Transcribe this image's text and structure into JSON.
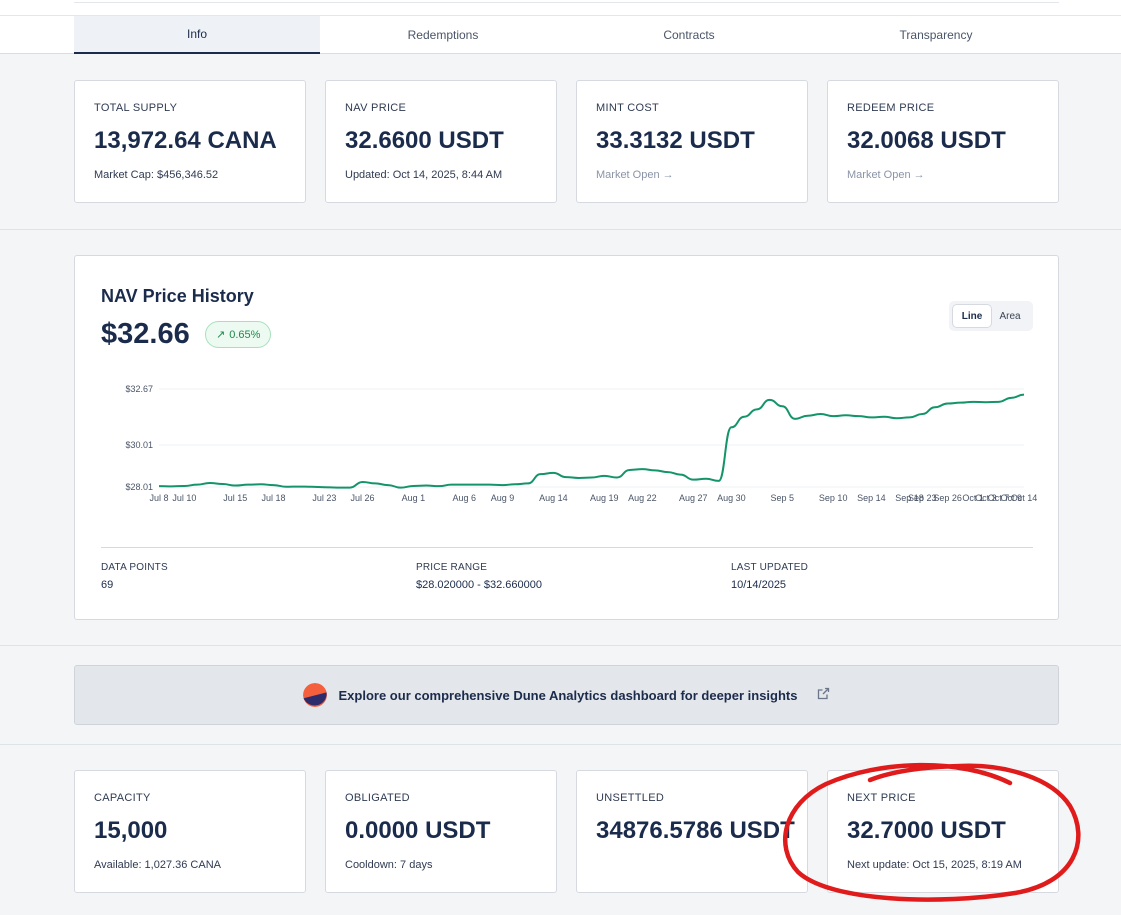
{
  "tabs": [
    {
      "label": "Info",
      "active": true
    },
    {
      "label": "Redemptions",
      "active": false
    },
    {
      "label": "Contracts",
      "active": false
    },
    {
      "label": "Transparency",
      "active": false
    }
  ],
  "stats_top": [
    {
      "label": "TOTAL SUPPLY",
      "value": "13,972.64 CANA",
      "sub": "Market Cap: $456,346.52"
    },
    {
      "label": "NAV PRICE",
      "value": "32.6600 USDT",
      "sub": "Updated: Oct 14, 2025, 8:44 AM"
    },
    {
      "label": "MINT COST",
      "value": "33.3132 USDT",
      "sub": "Market Open →"
    },
    {
      "label": "REDEEM PRICE",
      "value": "32.0068 USDT",
      "sub": "Market Open →"
    }
  ],
  "chart": {
    "title": "NAV Price History",
    "current_price": "$32.66",
    "change": "0.65%",
    "change_arrow": "↗",
    "toggle": {
      "line": "Line",
      "area": "Area",
      "selected": "Line"
    },
    "meta": {
      "data_points_label": "DATA POINTS",
      "data_points": "69",
      "price_range_label": "PRICE RANGE",
      "price_range": "$28.020000 - $32.660000",
      "last_updated_label": "LAST UPDATED",
      "last_updated": "10/14/2025"
    }
  },
  "chart_data": {
    "type": "line",
    "title": "NAV Price History",
    "y_ticks": [
      "$32.67",
      "$30.01",
      "$28.01"
    ],
    "y_tick_values": [
      32.67,
      30.01,
      28.01
    ],
    "ylim": [
      28.01,
      32.67
    ],
    "x_tick_labels": [
      "Jul 8",
      "Jul 10",
      "Jul 15",
      "Jul 18",
      "Jul 23",
      "Jul 26",
      "Aug 1",
      "Aug 6",
      "Aug 9",
      "Aug 14",
      "Aug 19",
      "Aug 22",
      "Aug 27",
      "Aug 30",
      "Sep 5",
      "Sep 10",
      "Sep 14",
      "Sep 18",
      "Sep 23",
      "Sep 26",
      "Oct 1",
      "Oct 3",
      "Oct 7",
      "Oct 9",
      "Oct 14"
    ],
    "x_tick_index": [
      0,
      2,
      6,
      9,
      13,
      16,
      20,
      24,
      27,
      31,
      35,
      38,
      42,
      45,
      49,
      53,
      56,
      59,
      60,
      62,
      64,
      65,
      66,
      67,
      68
    ],
    "values": [
      28.05,
      28.04,
      28.06,
      28.12,
      28.2,
      28.15,
      28.08,
      28.12,
      28.14,
      28.1,
      28.02,
      28.03,
      28.02,
      28.0,
      27.98,
      27.98,
      28.25,
      28.18,
      28.1,
      27.98,
      28.06,
      28.08,
      28.05,
      28.12,
      28.12,
      28.12,
      28.12,
      28.1,
      28.14,
      28.18,
      28.62,
      28.68,
      28.48,
      28.44,
      28.46,
      28.54,
      28.46,
      28.82,
      28.86,
      28.8,
      28.72,
      28.6,
      28.36,
      28.4,
      28.3,
      30.85,
      31.35,
      31.7,
      32.15,
      31.85,
      31.25,
      31.4,
      31.48,
      31.38,
      31.42,
      31.38,
      31.32,
      31.35,
      31.28,
      31.32,
      31.48,
      31.8,
      31.98,
      32.02,
      32.06,
      32.04,
      32.06,
      32.25,
      32.4
    ],
    "series": [
      {
        "name": "NAV Price",
        "color": "#14946a"
      }
    ]
  },
  "dune": {
    "text": "Explore our comprehensive Dune Analytics dashboard for deeper insights",
    "icon": "external-link-icon"
  },
  "stats_bottom": [
    {
      "label": "CAPACITY",
      "value": "15,000",
      "sub": "Available: 1,027.36 CANA"
    },
    {
      "label": "OBLIGATED",
      "value": "0.0000 USDT",
      "sub": "Cooldown: 7 days"
    },
    {
      "label": "UNSETTLED",
      "value": "34876.5786 USDT",
      "sub": ""
    },
    {
      "label": "NEXT PRICE",
      "value": "32.7000 USDT",
      "sub": "Next update: Oct 15, 2025, 8:19 AM"
    }
  ],
  "colors": {
    "accent": "#14946a",
    "navy": "#1b2b4b",
    "annotation": "#e01b1b"
  }
}
